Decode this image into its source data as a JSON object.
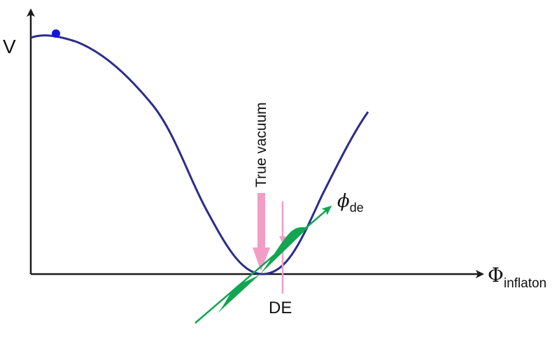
{
  "labels": {
    "y_axis": "V",
    "x_axis_main": "Φ",
    "x_axis_sub": "inflaton",
    "true_vacuum": "True vacuum",
    "de_field_main": "ϕ",
    "de_field_sub": "de",
    "de_marker": "DE"
  },
  "colors": {
    "axis": "#1a1a1a",
    "potential_curve": "#2b2c8c",
    "initial_point": "#1515e0",
    "true_vacuum_arrow": "#f29ec4",
    "de_marker": "#f29ec4",
    "de_field": "#12a552"
  }
}
